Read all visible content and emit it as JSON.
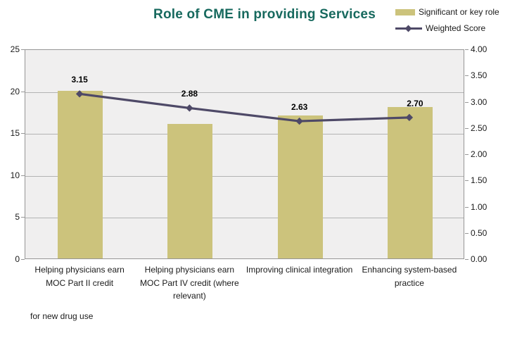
{
  "footnote": "for new drug use",
  "colors": {
    "title": "#17695e",
    "bar_fill": "#ccc37c",
    "line_stroke": "#4e4967",
    "plot_bg": "#f0efef",
    "gridline": "#b3b3b3",
    "plot_border": "#969696",
    "background": "#ffffff",
    "data_label": "#000000"
  },
  "chart_data": {
    "type": "bar",
    "title": "Role of CME in providing Services",
    "categories": [
      "Helping physicians earn MOC Part II credit",
      "Helping physicians earn MOC Part IV credit (where relevant)",
      "Improving clinical integration",
      "Enhancing system-based practice"
    ],
    "series": [
      {
        "name": "Significant or key role",
        "type": "bar",
        "axis": "left",
        "values": [
          20,
          16,
          17,
          18
        ],
        "color": "#ccc37c"
      },
      {
        "name": "Weighted Score",
        "type": "line",
        "axis": "right",
        "values": [
          3.15,
          2.88,
          2.63,
          2.7
        ],
        "data_labels": [
          "3.15",
          "2.88",
          "2.63",
          "2.70"
        ],
        "color": "#4e4967",
        "marker": "diamond"
      }
    ],
    "left_axis": {
      "min": 0,
      "max": 25,
      "step": 5,
      "ticks": [
        "0",
        "5",
        "10",
        "15",
        "20",
        "25"
      ]
    },
    "right_axis": {
      "min": 0,
      "max": 4,
      "step": 0.5,
      "ticks": [
        "0.00",
        "0.50",
        "1.00",
        "1.50",
        "2.00",
        "2.50",
        "3.00",
        "3.50",
        "4.00"
      ]
    },
    "grid": true,
    "legend_position": "top-right"
  }
}
